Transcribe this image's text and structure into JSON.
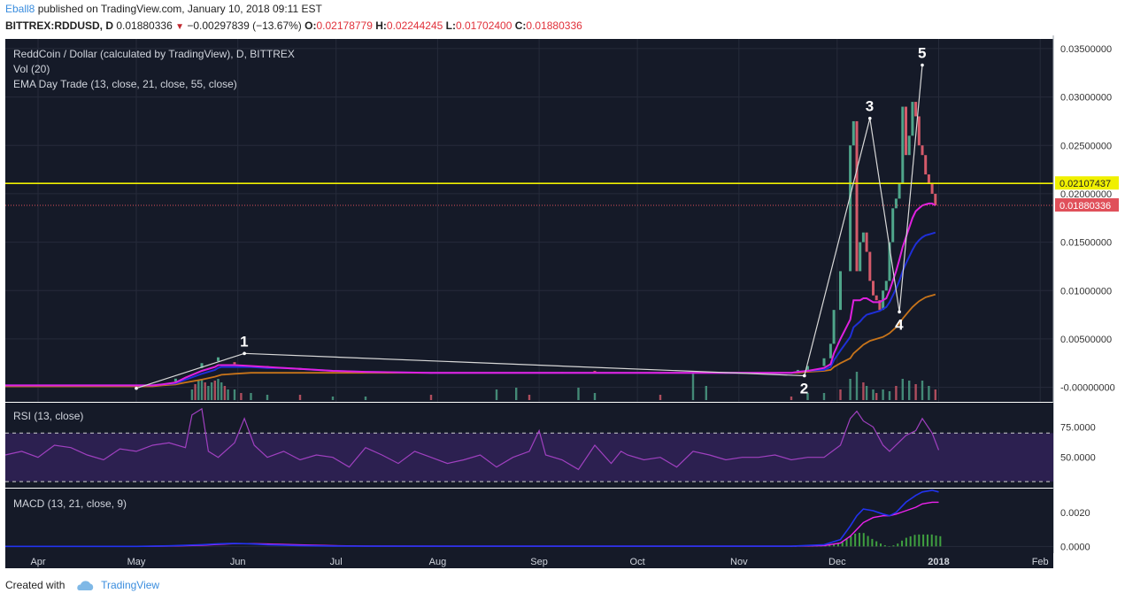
{
  "header": {
    "author": "Eball8",
    "published_text": "published on TradingView.com, January 10, 2018 09:11 EST",
    "symbol": "BITTREX:RDDUSD, D",
    "last": "0.01880336",
    "change": "−0.00297839 (−13.67%)",
    "o_label": "O:",
    "o_value": "0.02178779",
    "h_label": "H:",
    "h_value": "0.02244245",
    "l_label": "L:",
    "l_value": "0.01702400",
    "c_label": "C:",
    "c_value": "0.01880336"
  },
  "footer": {
    "created_with": "Created with",
    "brand": "TradingView"
  },
  "colors": {
    "panel_bg": "#151a28",
    "grid": "#262b3a",
    "up": "#4fa58a",
    "down": "#d45a6a",
    "ema13": "#e020e0",
    "ema21": "#1f2fd8",
    "ema55": "#c8741a",
    "yellow": "#f0f000",
    "rsi": "#a040c0",
    "macd": "#2233ee",
    "signal": "#ee22ee",
    "hist": "#3fa040",
    "pattern": "#d8d8d8"
  },
  "chart_data": {
    "type": "candlestick",
    "main_panel": {
      "title": "ReddCoin / Dollar (calculated by TradingView), D, BITTREX",
      "indicator_labels": [
        "Vol (20)",
        "EMA Day Trade (13, close, 21, close, 55, close)"
      ],
      "ylim": [
        -0.0015,
        0.036
      ],
      "y_ticks": [
        "0.03500000",
        "0.03000000",
        "0.02500000",
        "0.02000000",
        "0.01500000",
        "0.01000000",
        "0.00500000",
        "-0.00000000"
      ],
      "y_tick_values": [
        0.035,
        0.03,
        0.025,
        0.02,
        0.015,
        0.01,
        0.005,
        0.0
      ],
      "horizontal_line": {
        "value": 0.02107437,
        "label": "0.02107437"
      },
      "last_price": {
        "value": 0.01880336,
        "label": "0.01880336"
      },
      "price_series": {
        "t": [
          0,
          45,
          48,
          52,
          55,
          60,
          64,
          65,
          66,
          70,
          75,
          80,
          85,
          90,
          95,
          100,
          110,
          130,
          150,
          170,
          175,
          180,
          190,
          200,
          210,
          220,
          240,
          242,
          245,
          250,
          252,
          253,
          255,
          258,
          259,
          260,
          261,
          262,
          263,
          264,
          265,
          266,
          267,
          268,
          269,
          270,
          271,
          272,
          273,
          274,
          275,
          276,
          277,
          278,
          279,
          280,
          281,
          282,
          283,
          284
        ],
        "close": [
          0.0002,
          0.0002,
          0.0006,
          0.0009,
          0.002,
          0.0025,
          0.0027,
          0.0031,
          0.0026,
          0.0024,
          0.0022,
          0.0021,
          0.002,
          0.0018,
          0.0017,
          0.0016,
          0.0015,
          0.0015,
          0.0016,
          0.0015,
          0.0017,
          0.0015,
          0.0015,
          0.0015,
          0.0015,
          0.0015,
          0.0015,
          0.0018,
          0.0022,
          0.003,
          0.0045,
          0.008,
          0.012,
          0.025,
          0.0275,
          0.012,
          0.015,
          0.016,
          0.014,
          0.011,
          0.0095,
          0.009,
          0.008,
          0.01,
          0.011,
          0.015,
          0.0185,
          0.0195,
          0.021,
          0.029,
          0.024,
          0.026,
          0.0295,
          0.028,
          0.025,
          0.024,
          0.022,
          0.021,
          0.02,
          0.0188
        ],
        "ema13": [
          0.0002,
          0.0002,
          0.0003,
          0.0005,
          0.001,
          0.0017,
          0.0021,
          0.0023,
          0.0023,
          0.0023,
          0.0022,
          0.0021,
          0.002,
          0.0019,
          0.0018,
          0.0017,
          0.0016,
          0.0015,
          0.0015,
          0.0015,
          0.0015,
          0.0015,
          0.0015,
          0.0015,
          0.0015,
          0.0015,
          0.0015,
          0.0016,
          0.0017,
          0.002,
          0.0024,
          0.0035,
          0.005,
          0.007,
          0.009,
          0.009,
          0.009,
          0.0092,
          0.0092,
          0.009,
          0.0088,
          0.0088,
          0.0088,
          0.009,
          0.0092,
          0.01,
          0.011,
          0.012,
          0.0132,
          0.0145,
          0.0155,
          0.0165,
          0.0175,
          0.0182,
          0.0185,
          0.0188,
          0.0189,
          0.019,
          0.019,
          0.0188
        ],
        "ema21": [
          0.0002,
          0.0002,
          0.0003,
          0.0004,
          0.0008,
          0.0014,
          0.0018,
          0.002,
          0.0021,
          0.0021,
          0.0021,
          0.002,
          0.002,
          0.0019,
          0.0018,
          0.0017,
          0.0016,
          0.0015,
          0.0015,
          0.0015,
          0.0015,
          0.0015,
          0.0015,
          0.0015,
          0.0015,
          0.0015,
          0.0015,
          0.0016,
          0.0017,
          0.0018,
          0.0021,
          0.0028,
          0.0038,
          0.0052,
          0.0062,
          0.0065,
          0.0068,
          0.0072,
          0.0075,
          0.0076,
          0.0077,
          0.0078,
          0.0079,
          0.0081,
          0.0083,
          0.0088,
          0.0095,
          0.0102,
          0.011,
          0.012,
          0.0128,
          0.0135,
          0.0142,
          0.0148,
          0.0152,
          0.0155,
          0.0157,
          0.0158,
          0.0159,
          0.016
        ],
        "ema55": [
          0.0001,
          0.0001,
          0.0002,
          0.0003,
          0.0005,
          0.0008,
          0.0011,
          0.0012,
          0.0013,
          0.0014,
          0.0015,
          0.0015,
          0.0015,
          0.0015,
          0.0015,
          0.0015,
          0.0015,
          0.0015,
          0.0015,
          0.0015,
          0.0015,
          0.0015,
          0.0015,
          0.0015,
          0.0015,
          0.0015,
          0.0015,
          0.0015,
          0.0016,
          0.0017,
          0.0018,
          0.0021,
          0.0025,
          0.003,
          0.0035,
          0.0038,
          0.0041,
          0.0044,
          0.0046,
          0.0048,
          0.0049,
          0.005,
          0.0051,
          0.0052,
          0.0054,
          0.0056,
          0.0059,
          0.0062,
          0.0066,
          0.0071,
          0.0075,
          0.0079,
          0.0083,
          0.0086,
          0.0089,
          0.0091,
          0.0093,
          0.0094,
          0.0095,
          0.0096
        ]
      },
      "wave_points": [
        {
          "label": "",
          "t": 40,
          "price": -0.0001
        },
        {
          "label": "1",
          "t": 73,
          "price": 0.0035
        },
        {
          "label": "2",
          "t": 244,
          "price": 0.0012
        },
        {
          "label": "3",
          "t": 264,
          "price": 0.0278
        },
        {
          "label": "4",
          "t": 273,
          "price": 0.0078
        },
        {
          "label": "5",
          "t": 280,
          "price": 0.0333
        }
      ]
    },
    "volume": {
      "t": [
        57,
        58,
        59,
        60,
        61,
        62,
        63,
        64,
        65,
        66,
        67,
        68,
        70,
        72,
        75,
        80,
        90,
        100,
        110,
        130,
        150,
        156,
        160,
        175,
        180,
        200,
        210,
        214,
        240,
        245,
        250,
        255,
        258,
        260,
        262,
        263,
        265,
        266,
        268,
        270,
        272,
        274,
        276,
        278,
        280,
        282,
        284
      ],
      "v": [
        0.3,
        0.45,
        0.55,
        0.6,
        0.5,
        0.4,
        0.5,
        0.55,
        0.6,
        0.5,
        0.4,
        0.3,
        0.3,
        0.2,
        0.2,
        0.15,
        0.15,
        0.1,
        0.1,
        0.15,
        0.3,
        0.35,
        0.15,
        0.35,
        0.2,
        0.15,
        0.8,
        0.4,
        0.1,
        0.2,
        0.2,
        0.3,
        0.6,
        0.8,
        0.5,
        0.4,
        0.3,
        0.2,
        0.3,
        0.25,
        0.4,
        0.6,
        0.55,
        0.45,
        0.55,
        0.4,
        0.3
      ]
    },
    "x_ticks": [
      {
        "label": "Apr",
        "t": 10
      },
      {
        "label": "May",
        "t": 40
      },
      {
        "label": "Jun",
        "t": 71
      },
      {
        "label": "Jul",
        "t": 101
      },
      {
        "label": "Aug",
        "t": 132
      },
      {
        "label": "Sep",
        "t": 163
      },
      {
        "label": "Oct",
        "t": 193
      },
      {
        "label": "Nov",
        "t": 224
      },
      {
        "label": "Dec",
        "t": 254
      },
      {
        "label": "2018",
        "t": 285
      },
      {
        "label": "Feb",
        "t": 316
      }
    ],
    "rsi_panel": {
      "title": "RSI (13, close)",
      "ylim": [
        25,
        95
      ],
      "y_ticks": [
        "75.0000",
        "50.0000"
      ],
      "y_tick_values": [
        75,
        50
      ],
      "band": [
        30,
        70
      ],
      "t": [
        0,
        5,
        10,
        15,
        20,
        25,
        30,
        35,
        40,
        45,
        50,
        55,
        57,
        60,
        62,
        65,
        70,
        73,
        76,
        80,
        85,
        90,
        95,
        100,
        105,
        110,
        115,
        120,
        125,
        130,
        135,
        140,
        145,
        150,
        155,
        160,
        163,
        165,
        170,
        175,
        180,
        185,
        188,
        190,
        195,
        200,
        205,
        210,
        215,
        220,
        225,
        230,
        235,
        240,
        245,
        250,
        255,
        258,
        260,
        262,
        265,
        268,
        270,
        275,
        278,
        280,
        283,
        285
      ],
      "v": [
        52,
        55,
        50,
        60,
        58,
        52,
        48,
        57,
        55,
        60,
        62,
        58,
        85,
        90,
        55,
        50,
        62,
        82,
        60,
        50,
        55,
        48,
        52,
        50,
        42,
        58,
        52,
        45,
        55,
        50,
        45,
        48,
        52,
        42,
        50,
        55,
        72,
        52,
        48,
        40,
        60,
        45,
        55,
        52,
        48,
        50,
        42,
        55,
        52,
        48,
        50,
        50,
        52,
        48,
        50,
        50,
        60,
        82,
        88,
        80,
        75,
        60,
        55,
        68,
        72,
        82,
        70,
        56
      ]
    },
    "macd_panel": {
      "title": "MACD (13, 21, close, 9)",
      "ylim": [
        -0.0004,
        0.0034
      ],
      "y_ticks": [
        "0.0020",
        "0.0000"
      ],
      "y_tick_values": [
        0.002,
        0.0
      ],
      "t": [
        0,
        40,
        50,
        60,
        65,
        70,
        75,
        80,
        90,
        100,
        110,
        150,
        200,
        240,
        250,
        255,
        258,
        260,
        262,
        265,
        268,
        270,
        272,
        275,
        278,
        280,
        283,
        285
      ],
      "macd": [
        0,
        0,
        3e-05,
        0.0001,
        0.00015,
        0.00018,
        0.00015,
        0.0001,
        5e-05,
        2e-05,
        1e-05,
        1e-05,
        1e-05,
        1e-05,
        0.0001,
        0.0004,
        0.0012,
        0.0018,
        0.0022,
        0.0021,
        0.0019,
        0.0018,
        0.002,
        0.0026,
        0.003,
        0.0032,
        0.0033,
        0.0032
      ],
      "signal": [
        0,
        0,
        2e-05,
        7e-05,
        0.00012,
        0.00016,
        0.00016,
        0.00014,
        9e-05,
        4e-05,
        2e-05,
        1e-05,
        1e-05,
        1e-05,
        5e-05,
        0.0002,
        0.0006,
        0.001,
        0.0014,
        0.0017,
        0.0018,
        0.0018,
        0.0019,
        0.0021,
        0.0023,
        0.0025,
        0.0026,
        0.0026
      ],
      "hist": [
        0,
        0,
        1e-05,
        3e-05,
        3e-05,
        2e-05,
        -1e-05,
        -4e-05,
        -4e-05,
        -2e-05,
        -1e-05,
        0,
        0,
        0,
        5e-05,
        0.0002,
        0.0006,
        0.0008,
        0.0008,
        0.0004,
        0.0001,
        0,
        0.0001,
        0.0005,
        0.0007,
        0.0007,
        0.0007,
        0.0006
      ]
    }
  }
}
